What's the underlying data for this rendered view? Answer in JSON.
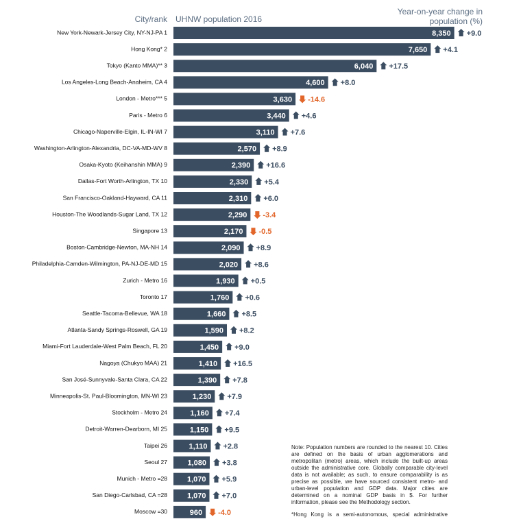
{
  "chart_data": {
    "type": "bar",
    "category_header": "City/rank",
    "categories": [
      "New York-Newark-Jersey City, NY-NJ-PA 1",
      "Hong Kong* 2",
      "Tokyo (Kanto MMA)** 3",
      "Los Angeles-Long Beach-Anaheim, CA 4",
      "London - Metro*** 5",
      "Paris - Metro 6",
      "Chicago-Naperville-Elgin, IL-IN-WI 7",
      "Washington-Arlington-Alexandria, DC-VA-MD-WV 8",
      "Osaka-Kyoto (Keihanshin MMA) 9",
      "Dallas-Fort Worth-Arlington, TX 10",
      "San Francisco-Oakland-Hayward, CA 11",
      "Houston-The Woodlands-Sugar Land, TX 12",
      "Singapore 13",
      "Boston-Cambridge-Newton, MA-NH 14",
      "Philadelphia-Camden-Wilmington, PA-NJ-DE-MD 15",
      "Zurich - Metro 16",
      "Toronto 17",
      "Seattle-Tacoma-Bellevue, WA 18",
      "Atlanta-Sandy Springs-Roswell, GA 19",
      "Miami-Fort Lauderdale-West Palm Beach, FL 20",
      "Nagoya (Chukyo MAA) 21",
      "San José-Sunnyvale-Santa Clara, CA 22",
      "Minneapolis-St. Paul-Bloomington, MN-WI 23",
      "Stockholm - Metro 24",
      "Detroit-Warren-Dearborn, MI 25",
      "Taipei 26",
      "Seoul 27",
      "Munich - Metro =28",
      "San Diego-Carlsbad, CA =28",
      "Moscow =30"
    ],
    "xlim": [
      0,
      8500
    ],
    "series": [
      {
        "name": "UHNW population 2016",
        "color": "#3b4d61",
        "values": [
          8350,
          7650,
          6040,
          4600,
          3630,
          3440,
          3110,
          2570,
          2390,
          2330,
          2310,
          2290,
          2170,
          2090,
          2020,
          1930,
          1760,
          1660,
          1590,
          1450,
          1410,
          1390,
          1230,
          1160,
          1150,
          1110,
          1080,
          1070,
          1070,
          960
        ],
        "value_labels": [
          "8,350",
          "7,650",
          "6,040",
          "4,600",
          "3,630",
          "3,440",
          "3,110",
          "2,570",
          "2,390",
          "2,330",
          "2,310",
          "2,290",
          "2,170",
          "2,090",
          "2,020",
          "1,930",
          "1,760",
          "1,660",
          "1,590",
          "1,450",
          "1,410",
          "1,390",
          "1,230",
          "1,160",
          "1,150",
          "1,110",
          "1,080",
          "1,070",
          "1,070",
          "960"
        ]
      },
      {
        "name": "Year-on-year change in population (%)",
        "color": "#3b4d61",
        "negative_color": "#e2662a",
        "values": [
          9.0,
          4.1,
          17.5,
          8.0,
          -14.6,
          4.6,
          7.6,
          8.9,
          16.6,
          5.4,
          6.0,
          -3.4,
          -0.5,
          8.9,
          8.6,
          0.5,
          0.6,
          8.5,
          8.2,
          9.0,
          16.5,
          7.8,
          7.9,
          7.4,
          9.5,
          2.8,
          3.8,
          5.9,
          7.0,
          -4.0
        ],
        "value_labels": [
          "+9.0",
          "+4.1",
          "+17.5",
          "+8.0",
          "-14.6",
          "+4.6",
          "+7.6",
          "+8.9",
          "+16.6",
          "+5.4",
          "+6.0",
          "-3.4",
          "-0.5",
          "+8.9",
          "+8.6",
          "+0.5",
          "+0.6",
          "+8.5",
          "+8.2",
          "+9.0",
          "+16.5",
          "+7.8",
          "+7.9",
          "+7.4",
          "+9.5",
          "+2.8",
          "+3.8",
          "+5.9",
          "+7.0",
          "-4.0"
        ]
      }
    ],
    "note": "Note: Population numbers are rounded to the nearest 10. Cities are defined on the basis of urban agglomerations and metropolitan (metro) areas, which include the built-up areas outside the administrative core. Globally comparable city-level data is not available; as such, to ensure comparability is as precise as possible, we have sourced consistent metro- and urban-level population and GDP data. Major cities are determined on a nominal GDP basis in $. For further information, please see the Methodology section.",
    "footnote": "*Hong Kong is a semi-autonomous, special administrative region of China."
  }
}
